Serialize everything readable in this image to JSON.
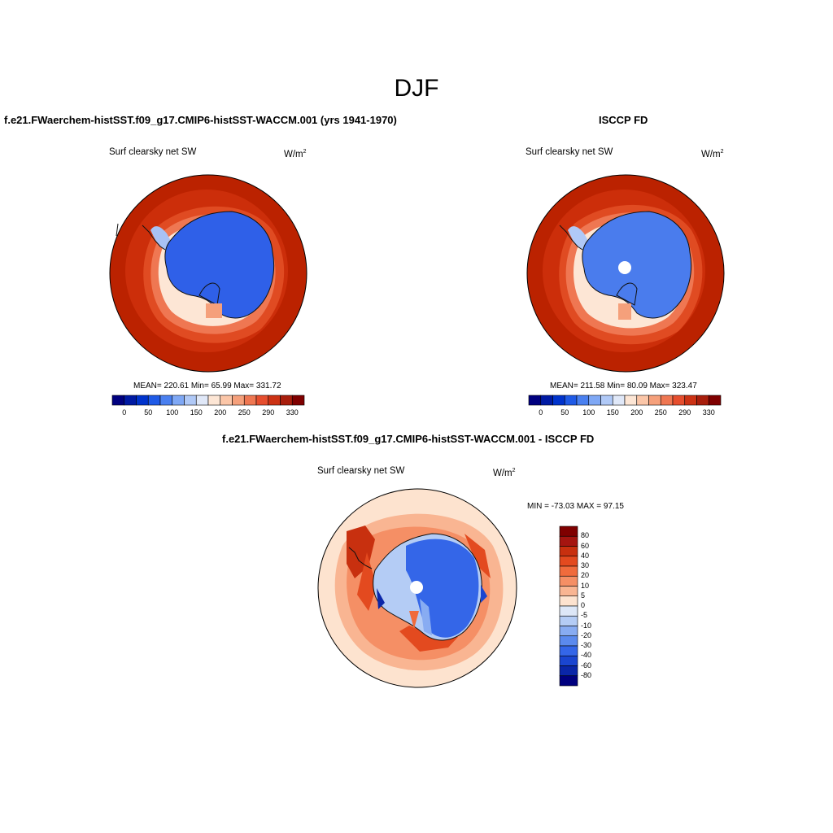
{
  "figure": {
    "season_title": "DJF"
  },
  "panels": {
    "model": {
      "title": "f.e21.FWaerchem-histSST.f09_g17.CMIP6-histSST-WACCM.001 (yrs 1941-1970)",
      "variable": "Surf clearsky net SW",
      "units_base": "W/m",
      "units_exp": "2",
      "stats": "MEAN= 220.61  Min=  65.99  Max= 331.72"
    },
    "obs": {
      "title": "ISCCP FD",
      "variable": "Surf clearsky net SW",
      "units_base": "W/m",
      "units_exp": "2",
      "stats": "MEAN= 211.58  Min=  80.09  Max= 323.47"
    },
    "diff": {
      "title": "f.e21.FWaerchem-histSST.f09_g17.CMIP6-histSST-WACCM.001 - ISCCP FD",
      "variable": "Surf clearsky net SW",
      "units_base": "W/m",
      "units_exp": "2",
      "stats": "MIN = -73.03 MAX =  97.15"
    }
  },
  "colorbars": {
    "absolute": {
      "tick_labels": [
        "0",
        "50",
        "100",
        "150",
        "200",
        "250",
        "290",
        "330"
      ],
      "colors": [
        "#00007f",
        "#001aa3",
        "#0033cc",
        "#1f5ae6",
        "#4a80f0",
        "#7fa8f5",
        "#b0c9f7",
        "#e0e8f8",
        "#fde6d5",
        "#fbc6a8",
        "#f5a07b",
        "#ef7752",
        "#e64e2e",
        "#cc3214",
        "#a81e0c",
        "#7f0000"
      ]
    },
    "difference": {
      "tick_labels": [
        "80",
        "60",
        "40",
        "30",
        "20",
        "10",
        "5",
        "0",
        "-5",
        "-10",
        "-20",
        "-30",
        "-40",
        "-60",
        "-80"
      ],
      "colors": [
        "#7f0000",
        "#a51510",
        "#c8300f",
        "#e34a1f",
        "#f06b3c",
        "#f58f65",
        "#f9b592",
        "#fde3cf",
        "#dde7f7",
        "#b4ccf5",
        "#88acf2",
        "#5b8aee",
        "#3466e8",
        "#1a45d0",
        "#0a26a8",
        "#00007f"
      ]
    }
  },
  "map_colors": {
    "ocean_outer": "#bb2200",
    "ocean_mid": "#d33a15",
    "ocean_inner": "#ef7752",
    "ice_edge": "#fde6d5",
    "ice_shelf": "#a8c2f5",
    "continent": "#2f60e8",
    "continent_obs": "#4a7ced",
    "diff_background": "#fde3cf",
    "diff_warm": "#f06b3c",
    "diff_hot": "#c8300f",
    "diff_cool": "#88acf2",
    "diff_continent": "#3466e8"
  }
}
